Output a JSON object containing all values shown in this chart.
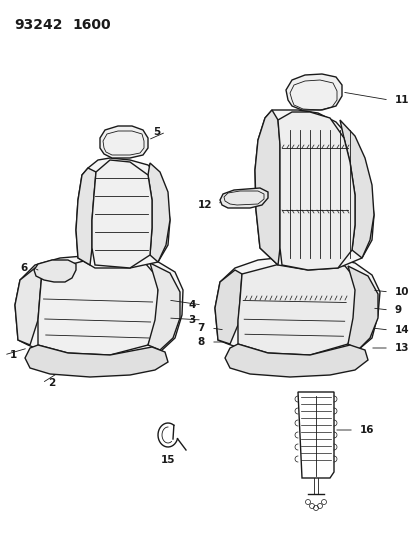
{
  "title_part1": "93242",
  "title_part2": "1600",
  "bg": "#ffffff",
  "lc": "#1a1a1a",
  "figsize": [
    4.14,
    5.33
  ],
  "dpi": 100,
  "font_size": 7.5
}
